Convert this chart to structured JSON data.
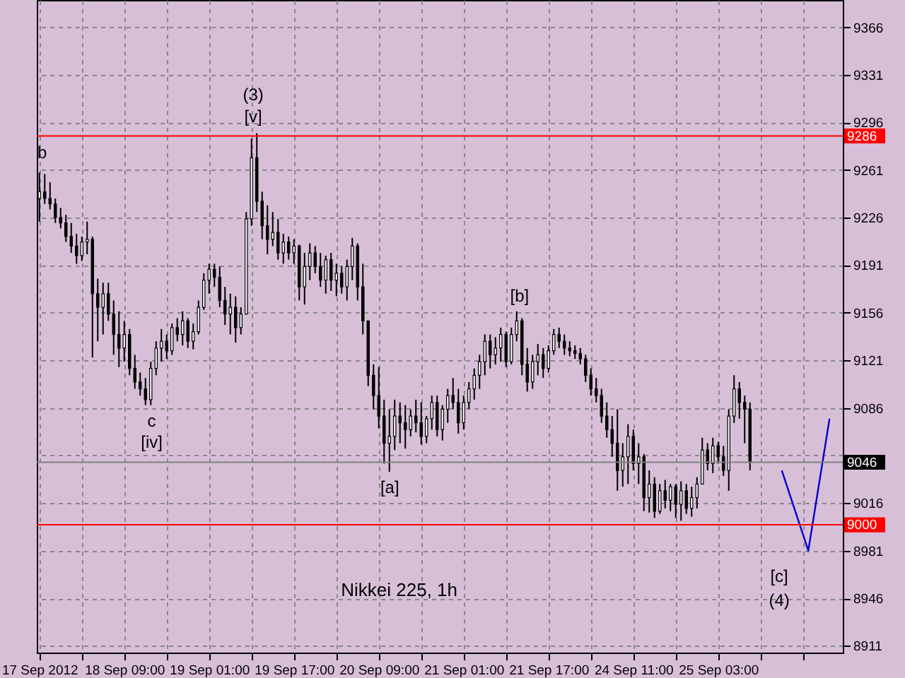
{
  "chart_data": {
    "type": "candlestick",
    "title": "Nikkei 225, 1h",
    "categories": [
      "17 Sep 2012",
      null,
      null,
      null,
      null,
      null,
      null,
      null,
      null,
      null,
      null,
      null,
      null,
      null,
      null,
      null,
      "18 Sep 09:00",
      null,
      null,
      null,
      null,
      null,
      null,
      null,
      null,
      null,
      null,
      null,
      null,
      null,
      null,
      null,
      "19 Sep 01:00",
      null,
      null,
      null,
      null,
      null,
      null,
      null,
      null,
      null,
      null,
      null,
      null,
      null,
      null,
      null,
      "19 Sep 17:00",
      null,
      null,
      null,
      null,
      null,
      null,
      null,
      null,
      null,
      null,
      null,
      null,
      null,
      null,
      null,
      "20 Sep 09:00",
      null,
      null,
      null,
      null,
      null,
      null,
      null,
      null,
      null,
      null,
      null,
      null,
      null,
      null,
      null,
      "21 Sep 01:00",
      null,
      null,
      null,
      null,
      null,
      null,
      null,
      null,
      null,
      null,
      null,
      null,
      null,
      null,
      null,
      "21 Sep 17:00",
      null,
      null,
      null,
      null,
      null,
      null,
      null,
      null,
      null,
      null,
      null,
      null,
      null,
      null,
      null,
      "24 Sep 11:00",
      null,
      null,
      null,
      null,
      null,
      null,
      null,
      null,
      null,
      null,
      null,
      null,
      null,
      null,
      null,
      "25 Sep 03:00",
      null,
      null,
      null,
      null,
      null,
      null,
      null,
      null,
      null,
      null,
      null,
      null,
      null,
      null,
      null,
      null,
      null,
      null,
      null,
      null,
      null,
      null,
      null
    ],
    "ohlc": [
      [
        9240,
        9259,
        9223,
        9245
      ],
      [
        9245,
        9258,
        9236,
        9240
      ],
      [
        9240,
        9252,
        9232,
        9236
      ],
      [
        9236,
        9240,
        9222,
        9226
      ],
      [
        9226,
        9233,
        9218,
        9222
      ],
      [
        9222,
        9228,
        9208,
        9212
      ],
      [
        9212,
        9222,
        9200,
        9205
      ],
      [
        9205,
        9214,
        9192,
        9198
      ],
      [
        9198,
        9212,
        9194,
        9208
      ],
      [
        9208,
        9223,
        9199,
        9210
      ],
      [
        9210,
        9212,
        9123,
        9170
      ],
      [
        9170,
        9181,
        9135,
        9160
      ],
      [
        9160,
        9178,
        9140,
        9170
      ],
      [
        9170,
        9178,
        9150,
        9155
      ],
      [
        9155,
        9165,
        9125,
        9140
      ],
      [
        9140,
        9157,
        9116,
        9130
      ],
      [
        9130,
        9150,
        9120,
        9140
      ],
      [
        9140,
        9144,
        9110,
        9115
      ],
      [
        9115,
        9125,
        9100,
        9105
      ],
      [
        9105,
        9112,
        9095,
        9100
      ],
      [
        9100,
        9108,
        9088,
        9092
      ],
      [
        9092,
        9120,
        9088,
        9115
      ],
      [
        9115,
        9135,
        9110,
        9130
      ],
      [
        9130,
        9144,
        9120,
        9135
      ],
      [
        9135,
        9140,
        9122,
        9128
      ],
      [
        9128,
        9148,
        9125,
        9145
      ],
      [
        9145,
        9152,
        9135,
        9140
      ],
      [
        9140,
        9157,
        9132,
        9150
      ],
      [
        9150,
        9152,
        9130,
        9135
      ],
      [
        9135,
        9148,
        9129,
        9142
      ],
      [
        9142,
        9165,
        9140,
        9160
      ],
      [
        9160,
        9185,
        9158,
        9180
      ],
      [
        9180,
        9192,
        9170,
        9188
      ],
      [
        9188,
        9192,
        9175,
        9182
      ],
      [
        9182,
        9190,
        9160,
        9165
      ],
      [
        9165,
        9175,
        9147,
        9155
      ],
      [
        9155,
        9170,
        9140,
        9160
      ],
      [
        9160,
        9168,
        9134,
        9145
      ],
      [
        9145,
        9160,
        9140,
        9155
      ],
      [
        9155,
        9230,
        9155,
        9225
      ],
      [
        9225,
        9284,
        9220,
        9270
      ],
      [
        9270,
        9288,
        9230,
        9238
      ],
      [
        9238,
        9245,
        9210,
        9220
      ],
      [
        9220,
        9235,
        9199,
        9210
      ],
      [
        9210,
        9230,
        9205,
        9215
      ],
      [
        9215,
        9225,
        9195,
        9200
      ],
      [
        9200,
        9214,
        9192,
        9208
      ],
      [
        9208,
        9212,
        9195,
        9200
      ],
      [
        9200,
        9210,
        9192,
        9205
      ],
      [
        9205,
        9206,
        9165,
        9175
      ],
      [
        9175,
        9200,
        9162,
        9190
      ],
      [
        9190,
        9207,
        9180,
        9200
      ],
      [
        9200,
        9205,
        9185,
        9190
      ],
      [
        9190,
        9200,
        9175,
        9180
      ],
      [
        9180,
        9198,
        9170,
        9195
      ],
      [
        9195,
        9200,
        9172,
        9180
      ],
      [
        9180,
        9192,
        9168,
        9185
      ],
      [
        9185,
        9190,
        9170,
        9175
      ],
      [
        9175,
        9195,
        9165,
        9190
      ],
      [
        9190,
        9211,
        9180,
        9205
      ],
      [
        9205,
        9207,
        9165,
        9175
      ],
      [
        9175,
        9192,
        9140,
        9150
      ],
      [
        9150,
        9150,
        9102,
        9110
      ],
      [
        9110,
        9118,
        9085,
        9095
      ],
      [
        9095,
        9116,
        9071,
        9080
      ],
      [
        9080,
        9092,
        9045,
        9060
      ],
      [
        9060,
        9085,
        9039,
        9065
      ],
      [
        9065,
        9092,
        9055,
        9080
      ],
      [
        9080,
        9090,
        9060,
        9075
      ],
      [
        9075,
        9088,
        9056,
        9070
      ],
      [
        9070,
        9085,
        9065,
        9080
      ],
      [
        9080,
        9092,
        9068,
        9075
      ],
      [
        9075,
        9090,
        9059,
        9065
      ],
      [
        9065,
        9080,
        9060,
        9078
      ],
      [
        9078,
        9095,
        9070,
        9090
      ],
      [
        9090,
        9095,
        9065,
        9070
      ],
      [
        9070,
        9088,
        9062,
        9085
      ],
      [
        9085,
        9100,
        9075,
        9095
      ],
      [
        9095,
        9108,
        9085,
        9090
      ],
      [
        9090,
        9100,
        9067,
        9075
      ],
      [
        9075,
        9095,
        9070,
        9090
      ],
      [
        9090,
        9105,
        9085,
        9100
      ],
      [
        9100,
        9115,
        9092,
        9110
      ],
      [
        9110,
        9125,
        9100,
        9120
      ],
      [
        9120,
        9140,
        9110,
        9135
      ],
      [
        9135,
        9140,
        9115,
        9125
      ],
      [
        9125,
        9138,
        9118,
        9130
      ],
      [
        9130,
        9145,
        9120,
        9140
      ],
      [
        9140,
        9142,
        9116,
        9120
      ],
      [
        9120,
        9145,
        9118,
        9140
      ],
      [
        9140,
        9157,
        9135,
        9150
      ],
      [
        9150,
        9152,
        9110,
        9118
      ],
      [
        9118,
        9130,
        9098,
        9105
      ],
      [
        9105,
        9125,
        9100,
        9120
      ],
      [
        9120,
        9133,
        9110,
        9125
      ],
      [
        9125,
        9130,
        9108,
        9115
      ],
      [
        9115,
        9132,
        9112,
        9128
      ],
      [
        9128,
        9144,
        9125,
        9140
      ],
      [
        9140,
        9145,
        9130,
        9135
      ],
      [
        9135,
        9140,
        9125,
        9130
      ],
      [
        9130,
        9135,
        9124,
        9128
      ],
      [
        9128,
        9132,
        9122,
        9126
      ],
      [
        9126,
        9130,
        9118,
        9122
      ],
      [
        9122,
        9125,
        9105,
        9110
      ],
      [
        9110,
        9115,
        9095,
        9100
      ],
      [
        9100,
        9108,
        9090,
        9095
      ],
      [
        9095,
        9100,
        9075,
        9080
      ],
      [
        9080,
        9090,
        9064,
        9070
      ],
      [
        9070,
        9080,
        9050,
        9060
      ],
      [
        9060,
        9085,
        9025,
        9040
      ],
      [
        9040,
        9060,
        9028,
        9050
      ],
      [
        9050,
        9074,
        9030,
        9065
      ],
      [
        9065,
        9070,
        9040,
        9045
      ],
      [
        9045,
        9060,
        9030,
        9050
      ],
      [
        9050,
        9052,
        9010,
        9020
      ],
      [
        9020,
        9040,
        9009,
        9030
      ],
      [
        9030,
        9035,
        9005,
        9010
      ],
      [
        9010,
        9030,
        9008,
        9025
      ],
      [
        9025,
        9033,
        9012,
        9018
      ],
      [
        9018,
        9030,
        9010,
        9028
      ],
      [
        9028,
        9030,
        9005,
        9015
      ],
      [
        9015,
        9032,
        9003,
        9025
      ],
      [
        9025,
        9030,
        9008,
        9012
      ],
      [
        9012,
        9028,
        9006,
        9020
      ],
      [
        9020,
        9035,
        9012,
        9030
      ],
      [
        9030,
        9064,
        9030,
        9055
      ],
      [
        9055,
        9060,
        9040,
        9045
      ],
      [
        9045,
        9064,
        9038,
        9058
      ],
      [
        9058,
        9061,
        9045,
        9050
      ],
      [
        9050,
        9058,
        9036,
        9040
      ],
      [
        9040,
        9085,
        9025,
        9080
      ],
      [
        9080,
        9110,
        9075,
        9100
      ],
      [
        9100,
        9105,
        9078,
        9090
      ],
      [
        9090,
        9095,
        9060,
        9085
      ],
      [
        9085,
        9090,
        9040,
        9046
      ],
      null,
      null,
      null,
      null,
      null,
      null,
      null,
      null,
      null,
      null,
      null,
      null,
      null,
      null,
      null,
      null,
      null
    ],
    "color": "#000000",
    "series": [
      {
        "type": "line",
        "color": "#0000cc",
        "values": [
          null,
          null,
          null,
          null,
          null,
          null,
          null,
          null,
          null,
          null,
          null,
          null,
          null,
          null,
          null,
          null,
          null,
          null,
          null,
          null,
          null,
          null,
          null,
          null,
          null,
          null,
          null,
          null,
          null,
          null,
          null,
          null,
          null,
          null,
          null,
          null,
          null,
          null,
          null,
          null,
          null,
          null,
          null,
          null,
          null,
          null,
          null,
          null,
          null,
          null,
          null,
          null,
          null,
          null,
          null,
          null,
          null,
          null,
          null,
          null,
          null,
          null,
          null,
          null,
          null,
          null,
          null,
          null,
          null,
          null,
          null,
          null,
          null,
          null,
          null,
          null,
          null,
          null,
          null,
          null,
          null,
          null,
          null,
          null,
          null,
          null,
          null,
          null,
          null,
          null,
          null,
          null,
          null,
          null,
          null,
          null,
          null,
          null,
          null,
          null,
          null,
          null,
          null,
          null,
          null,
          null,
          null,
          null,
          null,
          null,
          null,
          null,
          null,
          null,
          null,
          null,
          null,
          null,
          null,
          null,
          null,
          null,
          null,
          null,
          null,
          null,
          null,
          null,
          null,
          null,
          null,
          null,
          null,
          null,
          null,
          null,
          null,
          null,
          null,
          null,
          9040,
          null,
          null,
          null,
          null,
          8981,
          null,
          null,
          null,
          9078,
          null,
          null
        ]
      }
    ],
    "ylim": [
      8906,
      9386
    ],
    "yticks": [
      8911,
      8946,
      8981,
      9016,
      {
        "value": 9051,
        "label": null
      },
      9086,
      9121,
      9156,
      9191,
      9226,
      9261,
      9296,
      9331,
      9366
    ],
    "ref_lines": [
      {
        "axis": "y",
        "value": 9286,
        "label": "9286",
        "color": "#ff0000"
      },
      {
        "axis": "y",
        "value": 9000,
        "label": "9000",
        "color": "#ff0000"
      },
      {
        "axis": "y",
        "value": 9046,
        "label": "9046",
        "color": "#808080"
      }
    ],
    "annotations": [
      "b",
      "(3)",
      {
        "text": "[v]",
        "y": 9288
      },
      "c",
      "[iv]",
      "[a]",
      {
        "text": "[b]",
        "y": 9157
      },
      "[c]",
      "(4)"
    ],
    "grid": true
  }
}
